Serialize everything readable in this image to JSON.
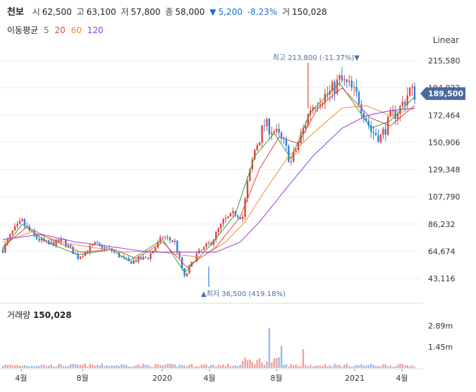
{
  "header": {
    "name": "천보",
    "open_label": "시",
    "open": "62,500",
    "high_label": "고",
    "high": "63,100",
    "low_label": "저",
    "low": "57,800",
    "close_label": "종",
    "close": "58,000",
    "change_arrow": "▼",
    "change": "5,200",
    "change_pct": "-8.23%",
    "volume_label": "거",
    "volume": "150,028"
  },
  "ma_legend": {
    "title": "이동평균",
    "p5": "5",
    "p20": "20",
    "p60": "60",
    "p120": "120",
    "colors": {
      "p5": "#2e9e44",
      "p20": "#e0453c",
      "p60": "#ef8a2f",
      "p120": "#8a3ee0"
    }
  },
  "scale_label": "Linear",
  "volume_panel": {
    "title": "거래량",
    "value": "150,028"
  },
  "chart_data": {
    "type": "candlestick",
    "y_ticks": [
      "215,580",
      "194,022",
      "172,464",
      "150,906",
      "129,348",
      "107,790",
      "86,232",
      "64,674",
      "43,116"
    ],
    "y_tick_values": [
      215580,
      194022,
      172464,
      150906,
      129348,
      107790,
      86232,
      64674,
      43116
    ],
    "x_ticks": [
      "4월",
      "8월",
      "2020",
      "4월",
      "8월",
      "2021",
      "4월"
    ],
    "current_price_tag": "189,500",
    "current_price": 189500,
    "high_annotation": "최고 213,800 (-11.37%)▼",
    "high_value": 213800,
    "low_annotation": "▲최저 36,500 (419.18%)",
    "low_value": 36500,
    "volume_ticks": [
      "2.89m",
      "1.45m"
    ],
    "volume_tick_values": [
      2890000,
      1450000
    ],
    "price_path": [
      [
        0,
        66000
      ],
      [
        4,
        80000
      ],
      [
        8,
        88000
      ],
      [
        13,
        76000
      ],
      [
        19,
        70000
      ],
      [
        25,
        73000
      ],
      [
        31,
        60000
      ],
      [
        38,
        70000
      ],
      [
        45,
        65000
      ],
      [
        52,
        56000
      ],
      [
        60,
        60000
      ],
      [
        66,
        76000
      ],
      [
        71,
        72000
      ],
      [
        75,
        44000
      ],
      [
        80,
        62000
      ],
      [
        86,
        72000
      ],
      [
        91,
        88000
      ],
      [
        96,
        95000
      ],
      [
        99,
        92000
      ],
      [
        101,
        118000
      ],
      [
        104,
        145000
      ],
      [
        108,
        165000
      ],
      [
        112,
        160000
      ],
      [
        116,
        150000
      ],
      [
        119,
        135000
      ],
      [
        123,
        155000
      ],
      [
        127,
        178000
      ],
      [
        131,
        186000
      ],
      [
        135,
        190000
      ],
      [
        139,
        200000
      ],
      [
        143,
        195000
      ],
      [
        147,
        185000
      ],
      [
        152,
        160000
      ],
      [
        156,
        155000
      ],
      [
        160,
        170000
      ],
      [
        164,
        178000
      ],
      [
        168,
        192000
      ],
      [
        170,
        189500
      ]
    ],
    "ma_paths": {
      "ma5": [
        [
          0,
          66000
        ],
        [
          8,
          86000
        ],
        [
          19,
          71000
        ],
        [
          31,
          62000
        ],
        [
          45,
          66000
        ],
        [
          52,
          57000
        ],
        [
          66,
          74000
        ],
        [
          75,
          48000
        ],
        [
          86,
          70000
        ],
        [
          96,
          94000
        ],
        [
          104,
          140000
        ],
        [
          112,
          158000
        ],
        [
          119,
          138000
        ],
        [
          127,
          175000
        ],
        [
          139,
          198000
        ],
        [
          152,
          162000
        ],
        [
          160,
          168000
        ],
        [
          170,
          187000
        ]
      ],
      "ma20": [
        [
          0,
          68000
        ],
        [
          10,
          84000
        ],
        [
          20,
          74000
        ],
        [
          32,
          64000
        ],
        [
          46,
          66000
        ],
        [
          55,
          59000
        ],
        [
          66,
          72000
        ],
        [
          76,
          52000
        ],
        [
          88,
          68000
        ],
        [
          98,
          92000
        ],
        [
          106,
          130000
        ],
        [
          114,
          155000
        ],
        [
          122,
          150000
        ],
        [
          130,
          178000
        ],
        [
          140,
          194000
        ],
        [
          152,
          170000
        ],
        [
          160,
          164000
        ],
        [
          170,
          180000
        ]
      ],
      "ma60": [
        [
          0,
          72000
        ],
        [
          12,
          80000
        ],
        [
          24,
          72000
        ],
        [
          36,
          68000
        ],
        [
          50,
          64000
        ],
        [
          62,
          65000
        ],
        [
          72,
          62000
        ],
        [
          82,
          60000
        ],
        [
          92,
          72000
        ],
        [
          100,
          88000
        ],
        [
          108,
          112000
        ],
        [
          118,
          140000
        ],
        [
          128,
          158000
        ],
        [
          140,
          178000
        ],
        [
          150,
          180000
        ],
        [
          160,
          172000
        ],
        [
          170,
          178000
        ]
      ],
      "ma120": [
        [
          0,
          74000
        ],
        [
          16,
          78000
        ],
        [
          30,
          72000
        ],
        [
          46,
          68000
        ],
        [
          60,
          64000
        ],
        [
          74,
          64000
        ],
        [
          88,
          64000
        ],
        [
          98,
          72000
        ],
        [
          106,
          88000
        ],
        [
          116,
          112000
        ],
        [
          128,
          140000
        ],
        [
          140,
          162000
        ],
        [
          150,
          172000
        ],
        [
          160,
          176000
        ],
        [
          170,
          178000
        ]
      ]
    }
  }
}
